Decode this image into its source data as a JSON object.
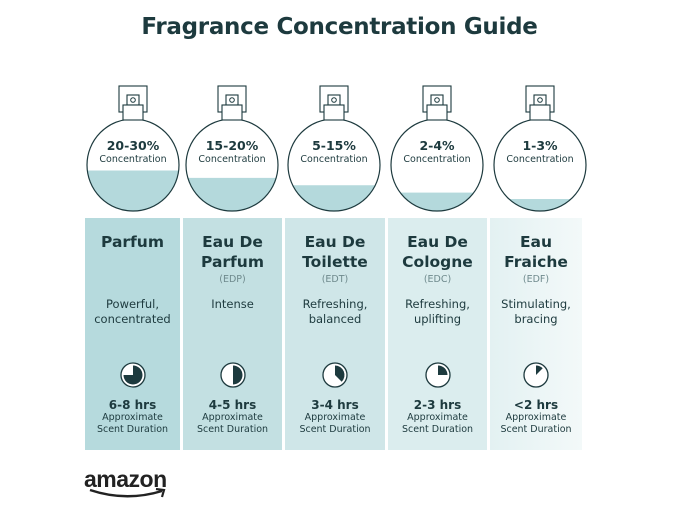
{
  "title": "Fragrance Concentration Guide",
  "colors": {
    "text": "#1d3a3e",
    "liquid": "#b4d9dc",
    "panel_start": "#b3d8db",
    "panel_end": "#eff7f8"
  },
  "brand": {
    "logo": "amazon",
    "icon": "amazon-smile-arrow"
  },
  "types": [
    {
      "concentration": "20-30%",
      "concentration_label": "Concentration",
      "fill_level": 0.44,
      "name_lines": [
        "Parfum"
      ],
      "abbr": "",
      "desc_lines": [
        "Powerful,",
        "concentrated"
      ],
      "duration": "6-8 hrs",
      "duration_fraction": 0.75,
      "duration_label_lines": [
        "Approximate",
        "Scent Duration"
      ]
    },
    {
      "concentration": "15-20%",
      "concentration_label": "Concentration",
      "fill_level": 0.36,
      "name_lines": [
        "Eau De",
        "Parfum"
      ],
      "abbr": "(EDP)",
      "desc_lines": [
        "Intense"
      ],
      "duration": "4-5 hrs",
      "duration_fraction": 0.5,
      "duration_label_lines": [
        "Approximate",
        "Scent Duration"
      ]
    },
    {
      "concentration": "5-15%",
      "concentration_label": "Concentration",
      "fill_level": 0.28,
      "name_lines": [
        "Eau De",
        "Toilette"
      ],
      "abbr": "(EDT)",
      "desc_lines": [
        "Refreshing,",
        "balanced"
      ],
      "duration": "3-4 hrs",
      "duration_fraction": 0.375,
      "duration_label_lines": [
        "Approximate",
        "Scent Duration"
      ]
    },
    {
      "concentration": "2-4%",
      "concentration_label": "Concentration",
      "fill_level": 0.2,
      "name_lines": [
        "Eau De",
        "Cologne"
      ],
      "abbr": "(EDC)",
      "desc_lines": [
        "Refreshing,",
        "uplifting"
      ],
      "duration": "2-3 hrs",
      "duration_fraction": 0.25,
      "duration_label_lines": [
        "Approximate",
        "Scent Duration"
      ]
    },
    {
      "concentration": "1-3%",
      "concentration_label": "Concentration",
      "fill_level": 0.13,
      "name_lines": [
        "Eau",
        "Fraiche"
      ],
      "abbr": "(EDF)",
      "desc_lines": [
        "Stimulating,",
        "bracing"
      ],
      "duration": "<2 hrs",
      "duration_fraction": 0.125,
      "duration_label_lines": [
        "Approximate",
        "Scent Duration"
      ]
    }
  ]
}
